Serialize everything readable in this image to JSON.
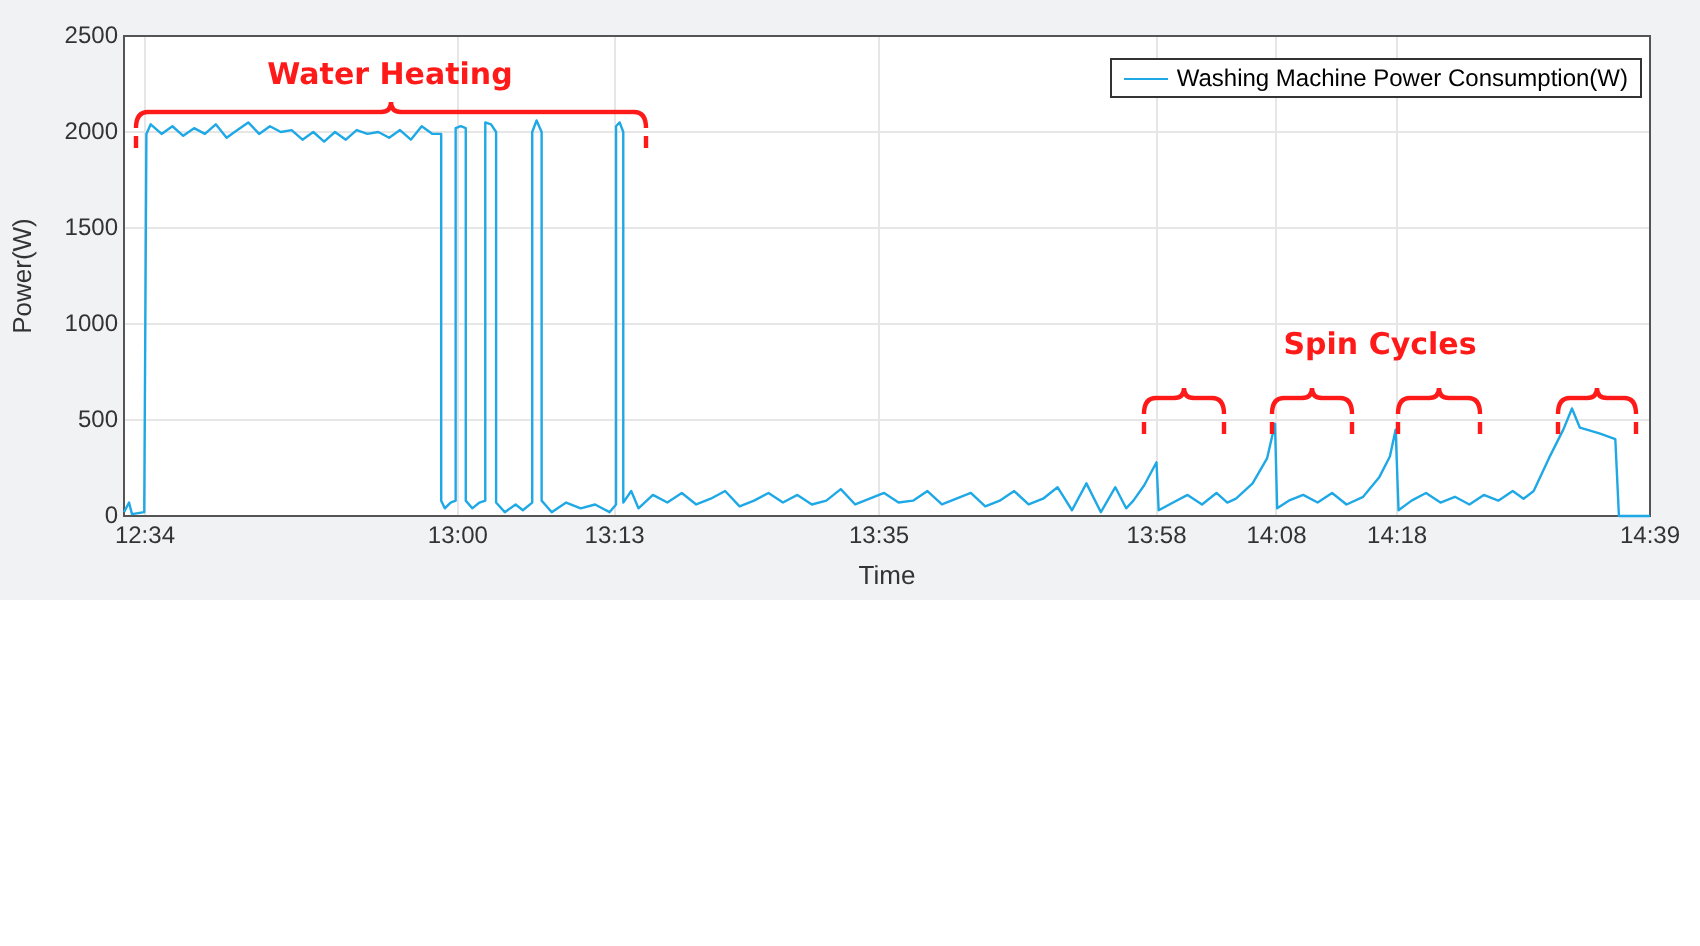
{
  "chart_data": {
    "type": "line",
    "xlabel": "Time",
    "ylabel": "Power(W)",
    "xlim": [
      12.538,
      14.65
    ],
    "ylim": [
      0,
      2500
    ],
    "xticks": [
      {
        "value": 12.567,
        "label": "12:34"
      },
      {
        "value": 13.0,
        "label": "13:00"
      },
      {
        "value": 13.217,
        "label": "13:13"
      },
      {
        "value": 13.583,
        "label": "13:35"
      },
      {
        "value": 13.967,
        "label": "13:58"
      },
      {
        "value": 14.133,
        "label": "14:08"
      },
      {
        "value": 14.3,
        "label": "14:18"
      },
      {
        "value": 14.65,
        "label": "14:39"
      }
    ],
    "yticks": [
      0,
      500,
      1000,
      1500,
      2000,
      2500
    ],
    "grid": true,
    "legend": "top right",
    "annotations": [
      "Water Heating",
      "Spin Cycles"
    ],
    "series": [
      {
        "name": "Washing Machine Power Consumption(W)",
        "color": "#1fa8e6",
        "x": [
          12.538,
          12.545,
          12.549,
          12.566,
          12.569,
          12.575,
          12.59,
          12.605,
          12.62,
          12.635,
          12.65,
          12.665,
          12.68,
          12.695,
          12.71,
          12.725,
          12.74,
          12.755,
          12.77,
          12.785,
          12.8,
          12.815,
          12.83,
          12.845,
          12.86,
          12.875,
          12.89,
          12.905,
          12.92,
          12.935,
          12.95,
          12.965,
          12.977,
          12.977,
          12.982,
          12.99,
          12.997,
          12.997,
          13.004,
          13.011,
          13.011,
          13.02,
          13.03,
          13.038,
          13.038,
          13.046,
          13.053,
          13.053,
          13.065,
          13.08,
          13.09,
          13.103,
          13.103,
          13.109,
          13.116,
          13.116,
          13.13,
          13.15,
          13.17,
          13.19,
          13.21,
          13.219,
          13.219,
          13.224,
          13.229,
          13.229,
          13.24,
          13.25,
          13.27,
          13.29,
          13.31,
          13.33,
          13.35,
          13.37,
          13.39,
          13.41,
          13.43,
          13.45,
          13.47,
          13.49,
          13.51,
          13.53,
          13.55,
          13.57,
          13.59,
          13.61,
          13.63,
          13.65,
          13.67,
          13.69,
          13.71,
          13.73,
          13.75,
          13.77,
          13.79,
          13.81,
          13.83,
          13.85,
          13.87,
          13.89,
          13.91,
          13.925,
          13.935,
          13.95,
          13.967,
          13.97,
          13.99,
          14.01,
          14.03,
          14.05,
          14.065,
          14.077,
          14.1,
          14.12,
          14.131,
          14.134,
          14.15,
          14.17,
          14.19,
          14.21,
          14.23,
          14.253,
          14.275,
          14.29,
          14.298,
          14.302,
          14.32,
          14.34,
          14.36,
          14.38,
          14.4,
          14.42,
          14.44,
          14.46,
          14.475,
          14.489,
          14.51,
          14.53,
          14.542,
          14.553,
          14.58,
          14.602,
          14.607,
          14.65
        ],
        "values": [
          20,
          70,
          10,
          20,
          1990,
          2040,
          1990,
          2030,
          1980,
          2020,
          1990,
          2040,
          1970,
          2010,
          2050,
          1990,
          2030,
          2000,
          2010,
          1960,
          2000,
          1950,
          2000,
          1960,
          2010,
          1990,
          2000,
          1970,
          2010,
          1960,
          2030,
          1990,
          1990,
          80,
          40,
          70,
          80,
          2020,
          2030,
          2020,
          80,
          40,
          70,
          80,
          2050,
          2040,
          2000,
          70,
          20,
          60,
          30,
          70,
          2000,
          2060,
          2000,
          80,
          20,
          70,
          40,
          60,
          20,
          60,
          2030,
          2050,
          2000,
          70,
          130,
          40,
          110,
          70,
          120,
          60,
          90,
          130,
          50,
          80,
          120,
          70,
          110,
          60,
          80,
          140,
          60,
          90,
          120,
          70,
          80,
          130,
          60,
          90,
          120,
          50,
          80,
          130,
          60,
          90,
          150,
          30,
          170,
          20,
          150,
          40,
          80,
          160,
          280,
          30,
          70,
          110,
          60,
          120,
          70,
          90,
          170,
          300,
          480,
          40,
          80,
          110,
          70,
          120,
          60,
          100,
          200,
          310,
          450,
          30,
          80,
          120,
          70,
          100,
          60,
          110,
          80,
          130,
          90,
          130,
          300,
          450,
          560,
          460,
          430,
          400,
          0,
          0
        ]
      }
    ]
  }
}
